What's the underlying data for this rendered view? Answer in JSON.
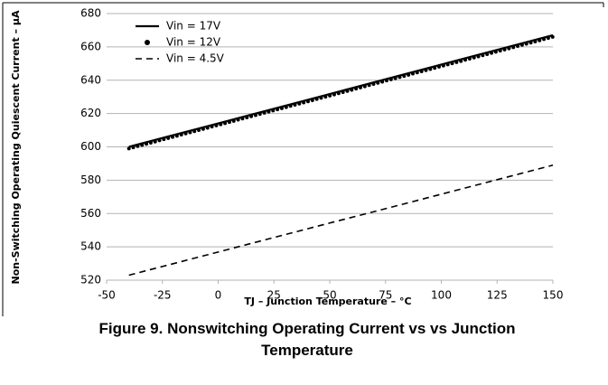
{
  "chart_data": {
    "type": "line",
    "caption": "Figure 9. Nonswitching Operating Current vs vs Junction Temperature",
    "xlabel": "TJ – Junction Temperature – °C",
    "ylabel": "Non-Switching Operating Quiescent Current – μA",
    "x": [
      -40,
      -25,
      0,
      25,
      50,
      75,
      100,
      125,
      150
    ],
    "series": [
      {
        "name": "Vin = 17V",
        "color": "#000000",
        "style": "solid",
        "values": [
          600,
          605.3,
          614.1,
          622.9,
          631.7,
          640.6,
          649.4,
          658.2,
          667
        ]
      },
      {
        "name": "Vin = 12V",
        "color": "#000000",
        "style": "dotted",
        "values": [
          599,
          604.3,
          613.1,
          621.9,
          630.7,
          639.6,
          648.4,
          657.2,
          666
        ]
      },
      {
        "name": "Vin = 4.5V",
        "color": "#000000",
        "style": "dashed",
        "values": [
          523,
          528.2,
          536.9,
          545.6,
          554.3,
          562.9,
          571.6,
          580.3,
          589
        ]
      }
    ],
    "xlim": [
      -50,
      150
    ],
    "xticks": [
      -50,
      -25,
      0,
      25,
      50,
      75,
      100,
      125,
      150
    ],
    "ylim": [
      520,
      680
    ],
    "yticks": [
      520,
      540,
      560,
      580,
      600,
      620,
      640,
      660,
      680
    ],
    "grid": true,
    "legend": "upper left"
  }
}
